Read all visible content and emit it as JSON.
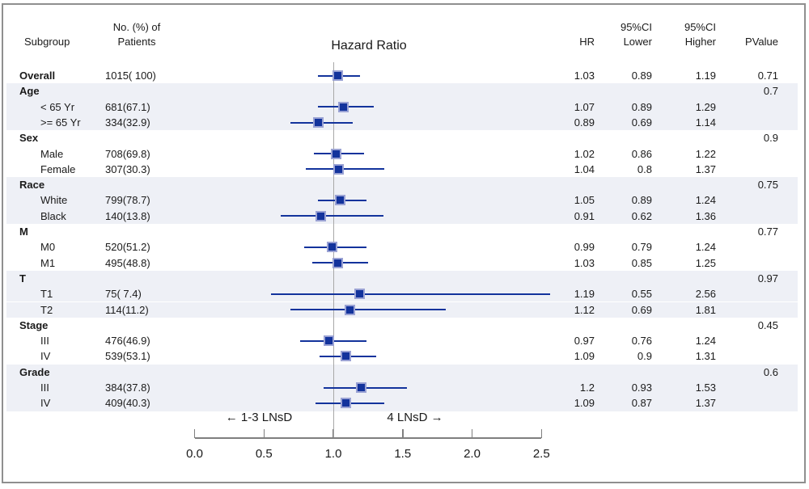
{
  "header": {
    "subgroup": "Subgroup",
    "patients1": "No. (%) of",
    "patients2": "Patients",
    "hr": "HR",
    "ci": "95%CI",
    "lower": "Lower",
    "higher": "Higher",
    "pvalue": "PValue"
  },
  "colors": {
    "navy": "#13339C",
    "marker_edge": "#9AA2D4",
    "band": "#EEF0F6",
    "ref_line": "#A8A8A8",
    "axis": "#7F7F7F",
    "text": "#1A1A1A",
    "frame": "#8F8F8F"
  },
  "chart_data": {
    "type": "forest",
    "title": "Hazard Ratio",
    "xlabel_left": "← 1-3 LNsD",
    "xlabel_right": "4 LNsD →",
    "axis": {
      "min": 0,
      "max": 2.5,
      "ref_line": 1.0,
      "ticks": [
        0,
        0.5,
        1.0,
        1.5,
        2.0,
        2.5
      ],
      "tick_labels": [
        "0.0",
        "0.5",
        "1.0",
        "1.5",
        "2.0",
        "2.5"
      ]
    },
    "rows": [
      {
        "label": "Overall",
        "bold": true,
        "band": false,
        "patients": "1015( 100)",
        "est": 1.03,
        "lo": 0.89,
        "hi": 1.19,
        "hr": "1.03",
        "lower": "0.89",
        "higher": "1.19",
        "pvalue": "0.71"
      },
      {
        "label": "Age",
        "group": true,
        "band": true,
        "pvalue": "0.7"
      },
      {
        "label": "< 65 Yr",
        "indent": true,
        "band": true,
        "patients": "681(67.1)",
        "est": 1.07,
        "lo": 0.89,
        "hi": 1.29,
        "hr": "1.07",
        "lower": "0.89",
        "higher": "1.29"
      },
      {
        "label": ">= 65 Yr",
        "indent": true,
        "band": true,
        "patients": "334(32.9)",
        "est": 0.89,
        "lo": 0.69,
        "hi": 1.14,
        "hr": "0.89",
        "lower": "0.69",
        "higher": "1.14"
      },
      {
        "label": "Sex",
        "group": true,
        "band": false,
        "pvalue": "0.9"
      },
      {
        "label": "Male",
        "indent": true,
        "band": false,
        "patients": "708(69.8)",
        "est": 1.02,
        "lo": 0.86,
        "hi": 1.22,
        "hr": "1.02",
        "lower": "0.86",
        "higher": "1.22"
      },
      {
        "label": "Female",
        "indent": true,
        "band": false,
        "patients": "307(30.3)",
        "est": 1.04,
        "lo": 0.8,
        "hi": 1.37,
        "hr": "1.04",
        "lower": "0.8",
        "higher": "1.37"
      },
      {
        "label": "Race",
        "group": true,
        "band": true,
        "pvalue": "0.75"
      },
      {
        "label": "White",
        "indent": true,
        "band": true,
        "patients": "799(78.7)",
        "est": 1.05,
        "lo": 0.89,
        "hi": 1.24,
        "hr": "1.05",
        "lower": "0.89",
        "higher": "1.24"
      },
      {
        "label": "Black",
        "indent": true,
        "band": true,
        "patients": "140(13.8)",
        "est": 0.91,
        "lo": 0.62,
        "hi": 1.36,
        "hr": "0.91",
        "lower": "0.62",
        "higher": "1.36"
      },
      {
        "label": "M",
        "group": true,
        "band": false,
        "pvalue": "0.77"
      },
      {
        "label": "M0",
        "indent": true,
        "band": false,
        "patients": "520(51.2)",
        "est": 0.99,
        "lo": 0.79,
        "hi": 1.24,
        "hr": "0.99",
        "lower": "0.79",
        "higher": "1.24"
      },
      {
        "label": "M1",
        "indent": true,
        "band": false,
        "patients": "495(48.8)",
        "est": 1.03,
        "lo": 0.85,
        "hi": 1.25,
        "hr": "1.03",
        "lower": "0.85",
        "higher": "1.25"
      },
      {
        "label": "T",
        "group": true,
        "band": true,
        "pvalue": "0.97"
      },
      {
        "label": "T1",
        "indent": true,
        "band": true,
        "patients": "75( 7.4)",
        "est": 1.19,
        "lo": 0.55,
        "hi": 2.56,
        "hr": "1.19",
        "lower": "0.55",
        "higher": "2.56"
      },
      {
        "label": "T2",
        "indent": true,
        "band": true,
        "patients": "114(11.2)",
        "est": 1.12,
        "lo": 0.69,
        "hi": 1.81,
        "hr": "1.12",
        "lower": "0.69",
        "higher": "1.81"
      },
      {
        "label": "Stage",
        "group": true,
        "band": false,
        "pvalue": "0.45"
      },
      {
        "label": "III",
        "indent": true,
        "band": false,
        "patients": "476(46.9)",
        "est": 0.97,
        "lo": 0.76,
        "hi": 1.24,
        "hr": "0.97",
        "lower": "0.76",
        "higher": "1.24"
      },
      {
        "label": "IV",
        "indent": true,
        "band": false,
        "patients": "539(53.1)",
        "est": 1.09,
        "lo": 0.9,
        "hi": 1.31,
        "hr": "1.09",
        "lower": "0.9",
        "higher": "1.31"
      },
      {
        "label": "Grade",
        "group": true,
        "band": true,
        "pvalue": "0.6"
      },
      {
        "label": "III",
        "indent": true,
        "band": true,
        "patients": "384(37.8)",
        "est": 1.2,
        "lo": 0.93,
        "hi": 1.53,
        "hr": "1.2",
        "lower": "0.93",
        "higher": "1.53"
      },
      {
        "label": "IV",
        "indent": true,
        "band": true,
        "patients": "409(40.3)",
        "est": 1.09,
        "lo": 0.87,
        "hi": 1.37,
        "hr": "1.09",
        "lower": "0.87",
        "higher": "1.37"
      }
    ]
  }
}
